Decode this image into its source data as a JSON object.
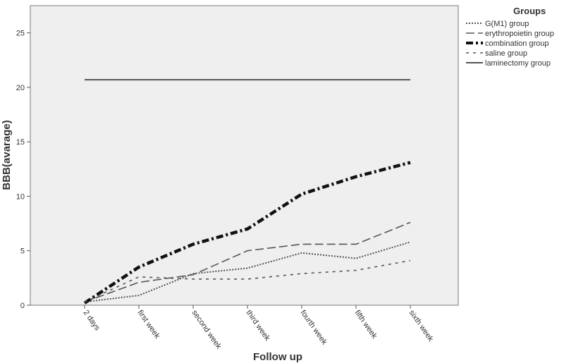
{
  "chart_data": {
    "type": "line",
    "title": "",
    "xlabel": "Follow up",
    "ylabel": "BBB(avarage)",
    "categories": [
      "2 days",
      "first week",
      "second week",
      "third week",
      "fourth week",
      "fifth week",
      "sixth week"
    ],
    "ylim": [
      0,
      27.5
    ],
    "yticks": [
      0,
      5,
      10,
      15,
      20,
      25
    ],
    "grid": false,
    "legend_title": "Groups",
    "legend_position": "right",
    "series": [
      {
        "name": "G(M1) group",
        "style": "dotted",
        "color": "#555555",
        "values": [
          0.3,
          0.9,
          2.9,
          3.4,
          4.8,
          4.3,
          5.8
        ]
      },
      {
        "name": "erythropoietin group",
        "style": "longdash",
        "color": "#555555",
        "values": [
          0.3,
          2.1,
          2.8,
          5.0,
          5.6,
          5.6,
          7.6
        ]
      },
      {
        "name": "combination group",
        "style": "dashdot",
        "color": "#111111",
        "values": [
          0.2,
          3.5,
          5.6,
          7.0,
          10.2,
          11.8,
          13.1
        ]
      },
      {
        "name": "saline group",
        "style": "shortdash",
        "color": "#555555",
        "values": [
          0.3,
          2.6,
          2.4,
          2.4,
          2.9,
          3.2,
          4.1
        ]
      },
      {
        "name": "laminectomy group",
        "style": "solid",
        "color": "#555555",
        "values": [
          20.7,
          20.7,
          20.7,
          20.7,
          20.7,
          20.7,
          20.7
        ]
      }
    ]
  }
}
